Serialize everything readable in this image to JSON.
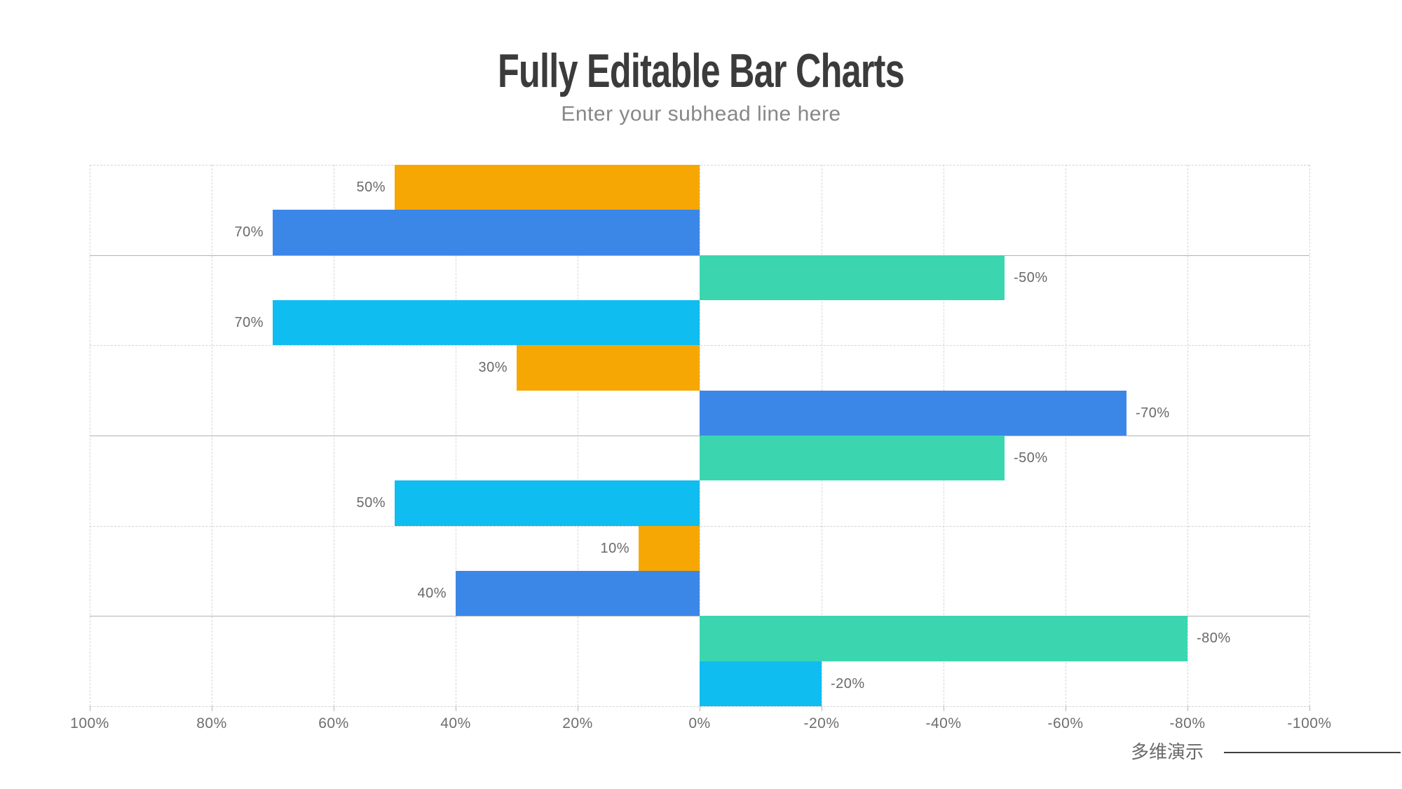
{
  "header": {
    "title": "Fully Editable Bar Charts",
    "subtitle": "Enter your subhead line here"
  },
  "footer": {
    "brand": "多维演示"
  },
  "chart_data": {
    "type": "bar",
    "orientation": "horizontal-diverging",
    "title": "Fully Editable Bar Charts",
    "x_axis": {
      "ticks": [
        "100%",
        "80%",
        "60%",
        "40%",
        "20%",
        "0%",
        "-20%",
        "-40%",
        "-60%",
        "-80%",
        "-100%"
      ],
      "left_value": 100,
      "right_value": -100,
      "note": "axis reversed: positive values extend left of the 0% center line, negative values extend right"
    },
    "palette": {
      "orange": "#F6A704",
      "blue": "#3B87E8",
      "green": "#3BD6AF",
      "cyan": "#0FBDF0"
    },
    "grid": {
      "vertical_style": "dashed",
      "row_separator_styles": [
        "dashed",
        "solid",
        "dashed",
        "solid",
        "dashed",
        "solid",
        "dashed"
      ]
    },
    "rows": [
      {
        "bars": [
          {
            "series": "orange",
            "value": 50,
            "label": "50%"
          },
          {
            "series": "blue",
            "value": 70,
            "label": "70%"
          }
        ]
      },
      {
        "bars": [
          {
            "series": "green",
            "value": -50,
            "label": "-50%"
          },
          {
            "series": "cyan",
            "value": 70,
            "label": "70%"
          }
        ]
      },
      {
        "bars": [
          {
            "series": "orange",
            "value": 30,
            "label": "30%"
          },
          {
            "series": "blue",
            "value": -70,
            "label": "-70%"
          }
        ]
      },
      {
        "bars": [
          {
            "series": "green",
            "value": -50,
            "label": "-50%"
          },
          {
            "series": "cyan",
            "value": 50,
            "label": "50%"
          }
        ]
      },
      {
        "bars": [
          {
            "series": "orange",
            "value": 10,
            "label": "10%"
          },
          {
            "series": "blue",
            "value": 40,
            "label": "40%"
          }
        ]
      },
      {
        "bars": [
          {
            "series": "green",
            "value": -80,
            "label": "-80%"
          },
          {
            "series": "cyan",
            "value": -20,
            "label": "-20%"
          }
        ]
      }
    ]
  }
}
